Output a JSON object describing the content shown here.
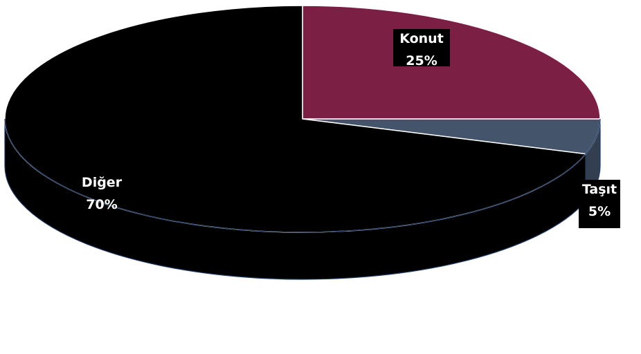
{
  "chart_data": {
    "type": "pie",
    "style": "3d",
    "title": "",
    "slices": [
      {
        "name": "Konut",
        "value": 25,
        "percent_label": "25%",
        "color": "#7B1F45",
        "label_box": "#000000",
        "label_color": "#ffffff"
      },
      {
        "name": "Taşıt",
        "value": 5,
        "percent_label": "5%",
        "color": "#44546A",
        "label_box": "#000000",
        "label_color": "#ffffff"
      },
      {
        "name": "Diğer",
        "value": 70,
        "percent_label": "70%",
        "color": "#000000",
        "label_box": "",
        "label_color": "#ffffff"
      }
    ],
    "legend": "none"
  }
}
